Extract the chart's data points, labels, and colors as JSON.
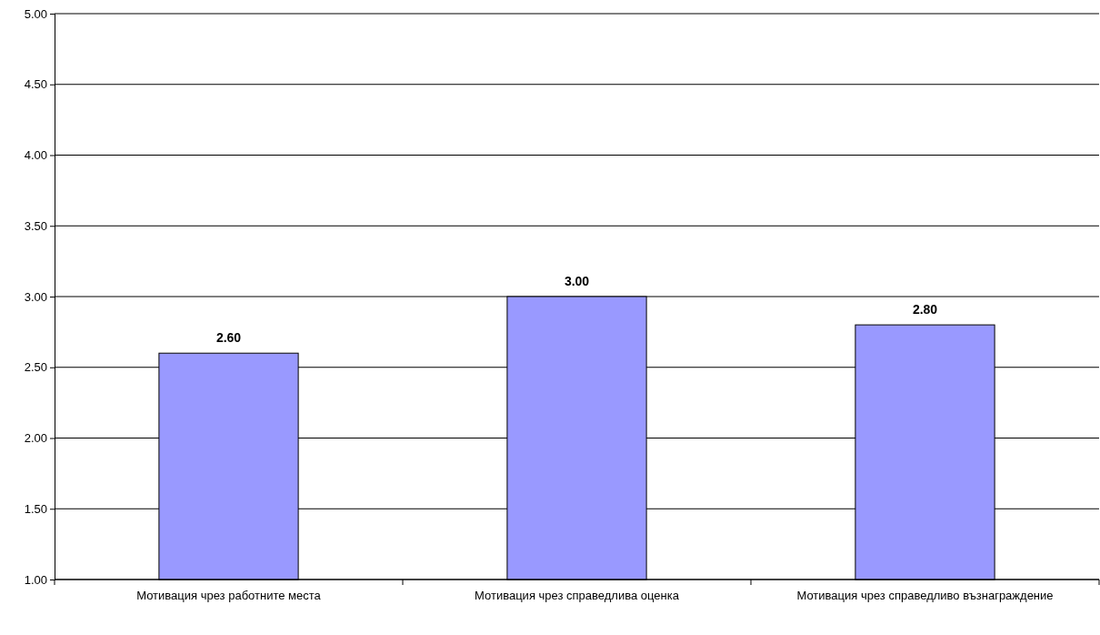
{
  "chart_data": {
    "type": "bar",
    "categories": [
      "Мотивация чрез работните места",
      "Мотивация чрез справедлива оценка",
      "Мотивация чрез справедливо възнаграждение"
    ],
    "values": [
      2.6,
      3.0,
      2.8
    ],
    "value_labels": [
      "2.60",
      "3.00",
      "2.80"
    ],
    "color": "#9999ff",
    "ylim": [
      1,
      5
    ],
    "yticks": [
      {
        "value": 1,
        "label": "1.00"
      },
      {
        "value": 1.5,
        "label": "1.50"
      },
      {
        "value": 2,
        "label": "2.00"
      },
      {
        "value": 2.5,
        "label": "2.50"
      },
      {
        "value": 3,
        "label": "3.00"
      },
      {
        "value": 3.5,
        "label": "3.50"
      },
      {
        "value": 4,
        "label": "4.00"
      },
      {
        "value": 4.5,
        "label": "4.50"
      },
      {
        "value": 5,
        "label": "5.00"
      }
    ],
    "grid": "y"
  }
}
